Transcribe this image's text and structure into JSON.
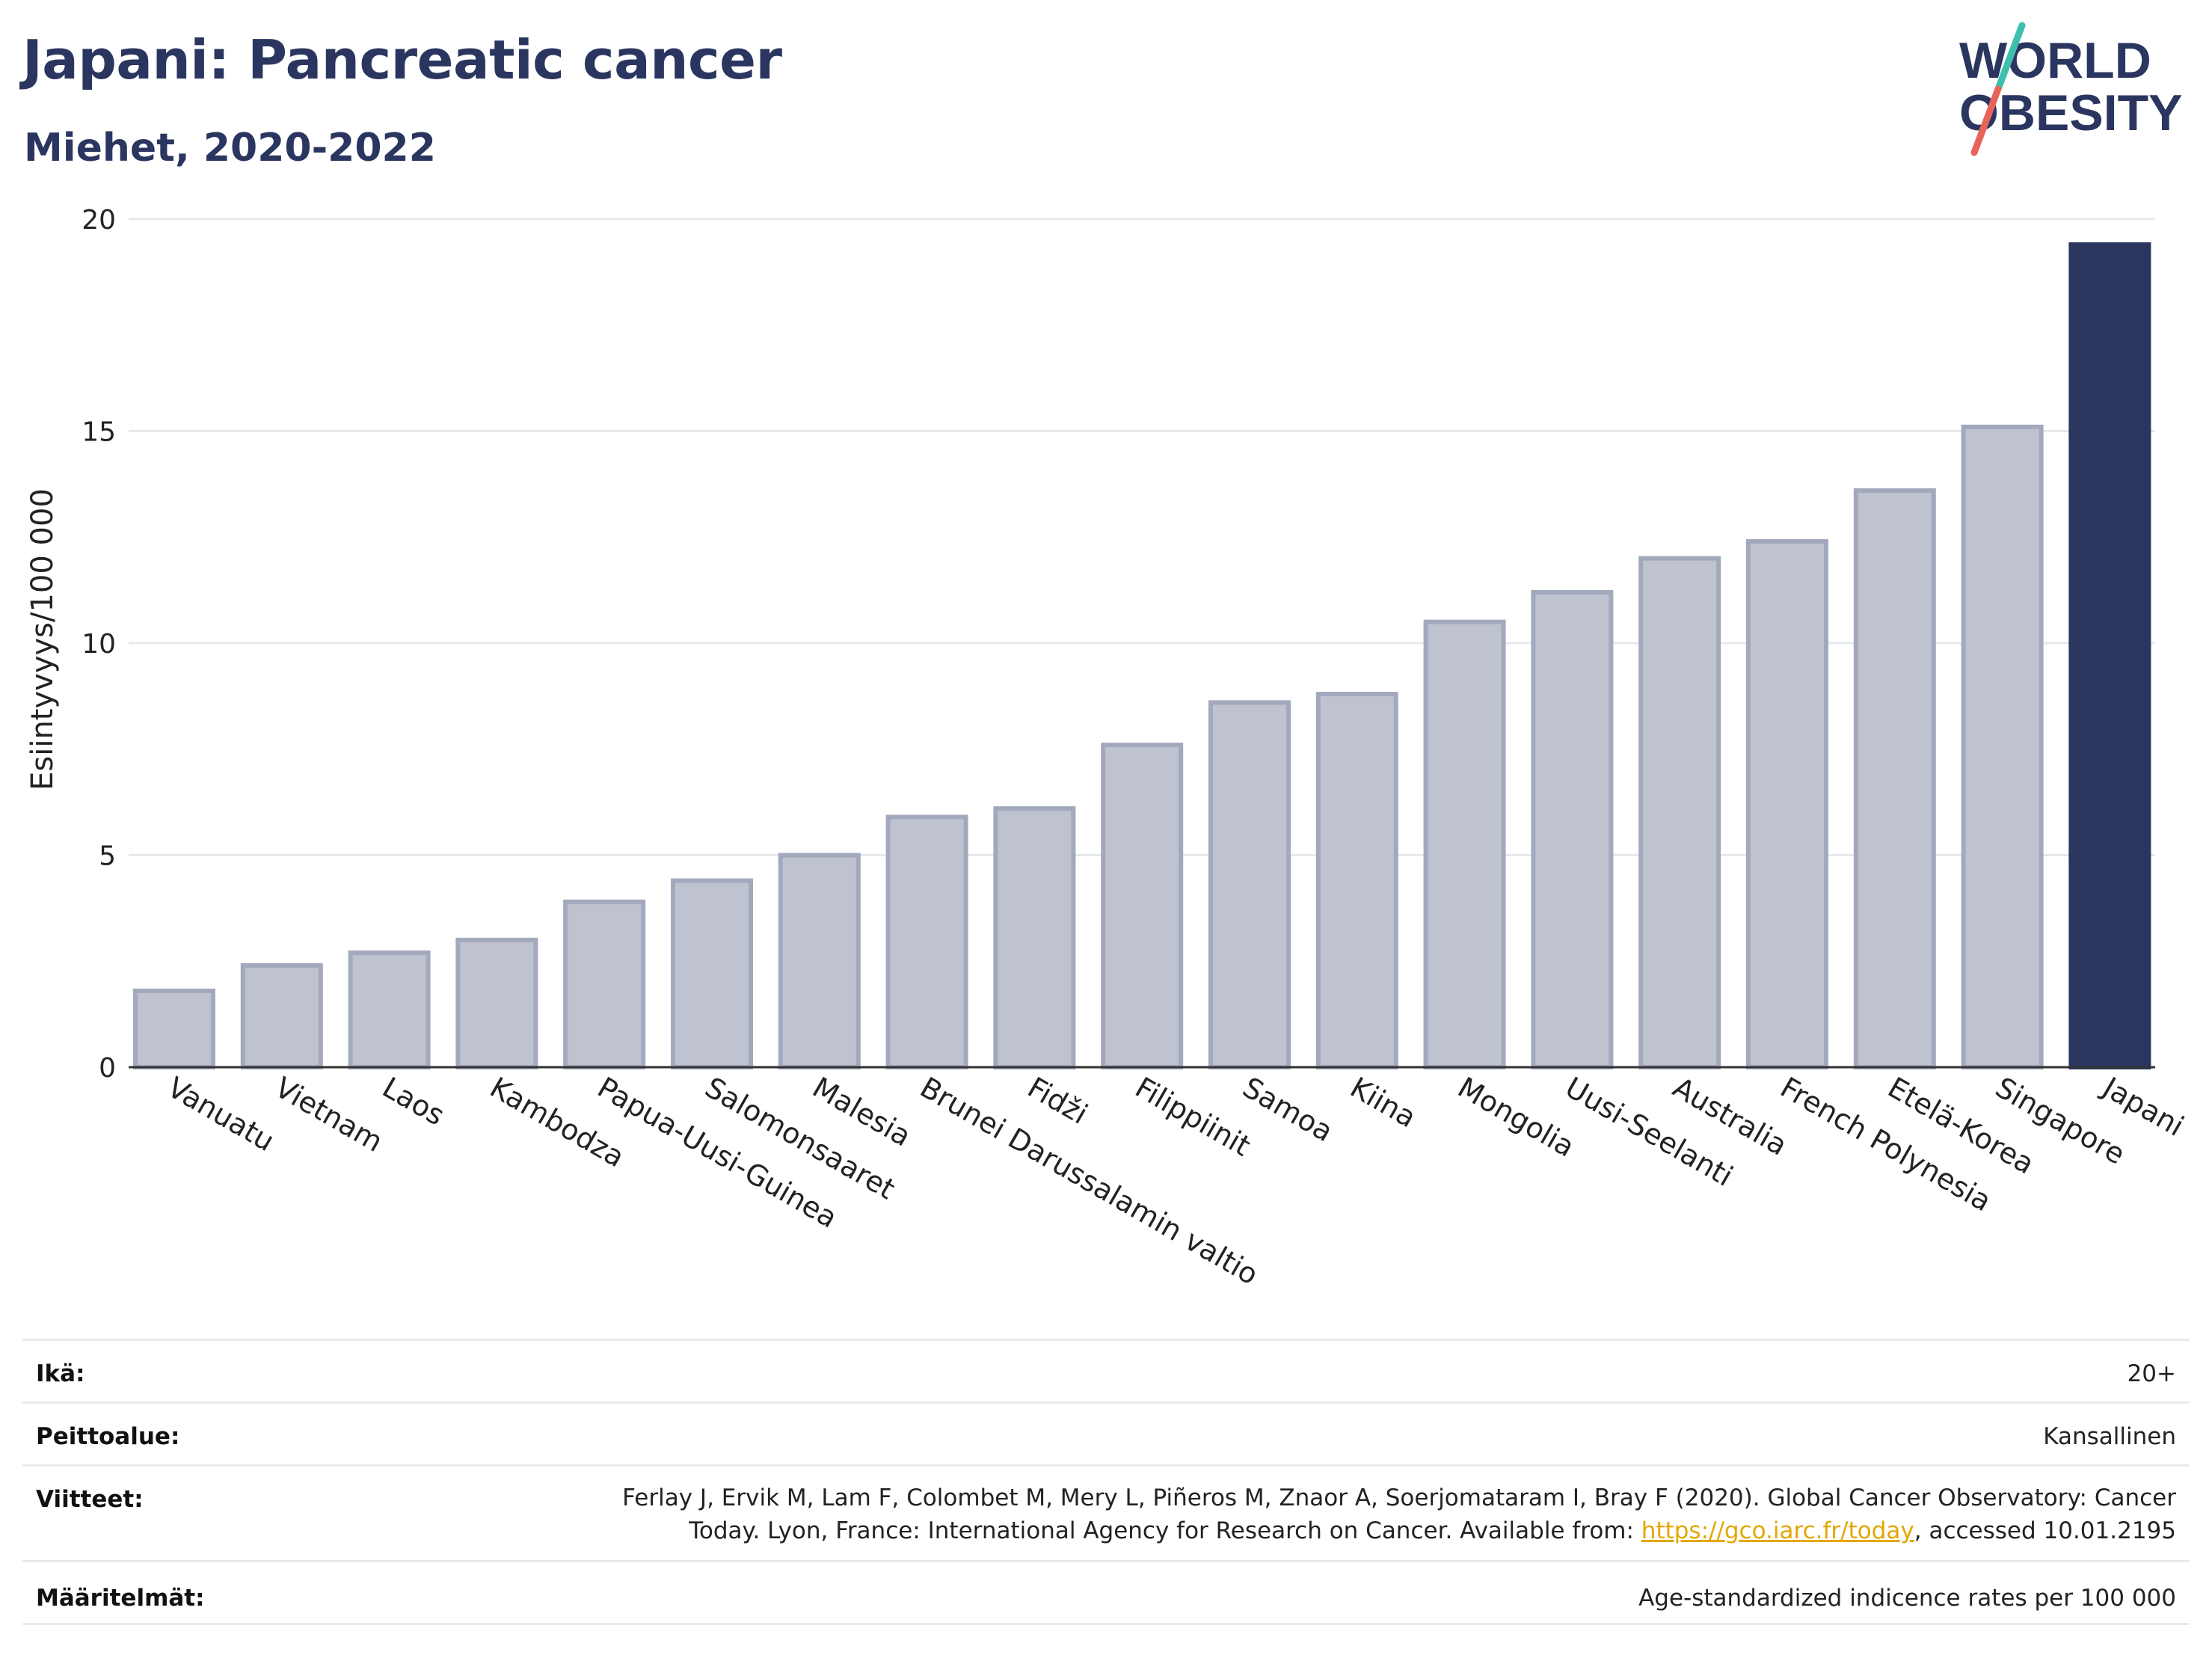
{
  "header": {
    "title": "Japani: Pancreatic cancer",
    "subtitle": "Miehet, 2020-2022"
  },
  "logo": {
    "line1": "WORLD",
    "line2": "OBESITY",
    "colors": {
      "text": "#2b3660",
      "slash_top": "#3cbfae",
      "slash_bottom": "#e8645a"
    }
  },
  "chart_data": {
    "type": "bar",
    "ylabel": "Esiintyvyys/100 000",
    "ylim": [
      0,
      20
    ],
    "yticks": [
      0,
      5,
      10,
      15,
      20
    ],
    "grid": true,
    "categories": [
      "Vanuatu",
      "Vietnam",
      "Laos",
      "Kambodza",
      "Papua-Uusi-Guinea",
      "Salomonsaaret",
      "Malesia",
      "Brunei Darussalamin valtio",
      "Fidži",
      "Filippiinit",
      "Samoa",
      "Kiina",
      "Mongolia",
      "Uusi-Seelanti",
      "Australia",
      "French Polynesia",
      "Etelä-Korea",
      "Singapore",
      "Japani"
    ],
    "values": [
      1.8,
      2.4,
      2.7,
      3.0,
      3.9,
      4.4,
      5.0,
      5.9,
      6.1,
      7.6,
      8.6,
      8.8,
      10.5,
      11.2,
      12.0,
      12.4,
      13.6,
      15.1,
      19.4
    ],
    "highlight": "Japani",
    "colors": {
      "bar": "#bfc3d0",
      "bar_edge": "#a3a9bd",
      "highlight": "#2b3660",
      "grid": "#e6e8ee",
      "axis": "#333333"
    }
  },
  "info": {
    "rows": [
      {
        "label": "Ikä:",
        "value": "20+"
      },
      {
        "label": "Peittoalue:",
        "value": "Kansallinen"
      },
      {
        "label": "Viitteet:",
        "value_line1": "Ferlay J, Ervik M, Lam F, Colombet M, Mery L, Piñeros M, Znaor A, Soerjomataram I, Bray F (2020). Global Cancer Observatory: Cancer",
        "value_line2_pre": "Today. Lyon, France: International Agency for Research on Cancer. Available from: ",
        "link": "https://gco.iarc.fr/today",
        "value_line2_post": ", accessed 10.01.2195"
      },
      {
        "label": "Määritelmät:",
        "value": "Age-standardized indicence rates per 100 000"
      }
    ]
  }
}
